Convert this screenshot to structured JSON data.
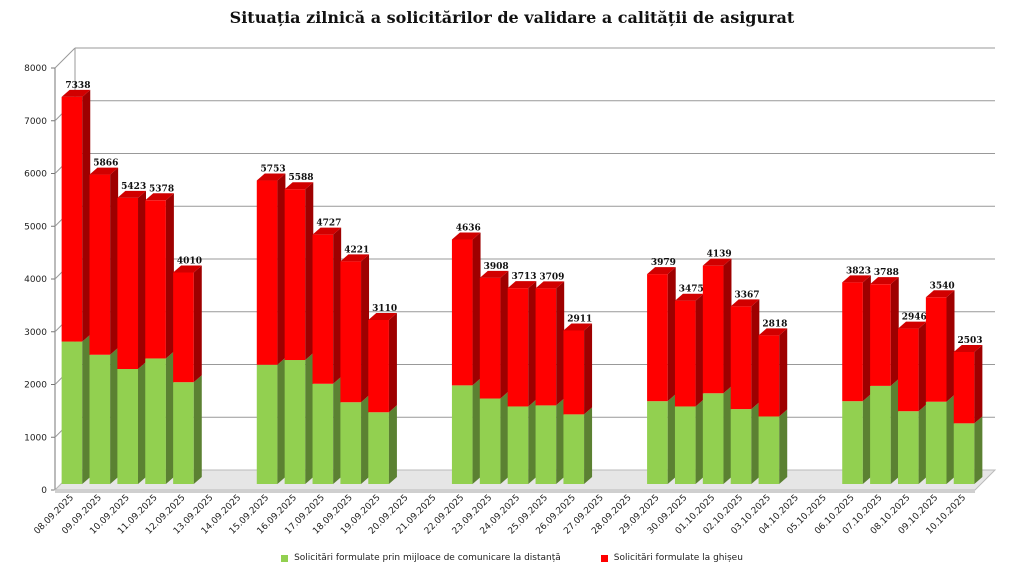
{
  "chart_data": {
    "type": "bar",
    "stacked": true,
    "title": "Situația zilnică a solicitărilor de validare a calității de asigurat",
    "categories": [
      "08.09.2025",
      "09.09.2025",
      "10.09.2025",
      "11.09.2025",
      "12.09.2025",
      "13.09.2025",
      "14.09.2025",
      "15.09.2025",
      "16.09.2025",
      "17.09.2025",
      "18.09.2025",
      "19.09.2025",
      "20.09.2025",
      "21.09.2025",
      "22.09.2025",
      "23.09.2025",
      "24.09.2025",
      "25.09.2025",
      "26.09.2025",
      "27.09.2025",
      "28.09.2025",
      "29.09.2025",
      "30.09.2025",
      "01.10.2025",
      "02.10.2025",
      "03.10.2025",
      "04.10.2025",
      "05.10.2025",
      "06.10.2025",
      "07.10.2025",
      "08.10.2025",
      "09.10.2025",
      "10.10.2025"
    ],
    "series": [
      {
        "name": "Solicitări formulate prin mijloace de comunicare la distanță",
        "color": "#92d050",
        "values": [
          2700,
          2450,
          2180,
          2380,
          1930,
          0,
          0,
          2260,
          2350,
          1900,
          1550,
          1360,
          0,
          0,
          1870,
          1620,
          1470,
          1490,
          1320,
          0,
          0,
          1570,
          1470,
          1720,
          1420,
          1280,
          0,
          0,
          1570,
          1860,
          1380,
          1560,
          1150
        ]
      },
      {
        "name": "Solicitări formulate la ghișeu",
        "color": "#ff0000",
        "values": [
          4638,
          3416,
          3243,
          2998,
          2080,
          0,
          0,
          3493,
          3238,
          2827,
          2671,
          1750,
          0,
          0,
          2766,
          2288,
          2243,
          2219,
          1591,
          0,
          0,
          2409,
          2005,
          2419,
          1947,
          1538,
          0,
          0,
          2253,
          1928,
          1566,
          1980,
          1353
        ]
      }
    ],
    "totals": [
      7338,
      5866,
      5423,
      5378,
      4010,
      null,
      null,
      5753,
      5588,
      4727,
      4221,
      3110,
      null,
      null,
      4636,
      3908,
      3713,
      3709,
      2911,
      null,
      null,
      3979,
      3475,
      4139,
      3367,
      2818,
      null,
      null,
      3823,
      3788,
      2946,
      3540,
      2503
    ],
    "ylim": [
      0,
      8000
    ],
    "yticks": [
      0,
      1000,
      2000,
      3000,
      4000,
      5000,
      6000,
      7000,
      8000
    ],
    "grid": true,
    "legend_position": "bottom"
  }
}
